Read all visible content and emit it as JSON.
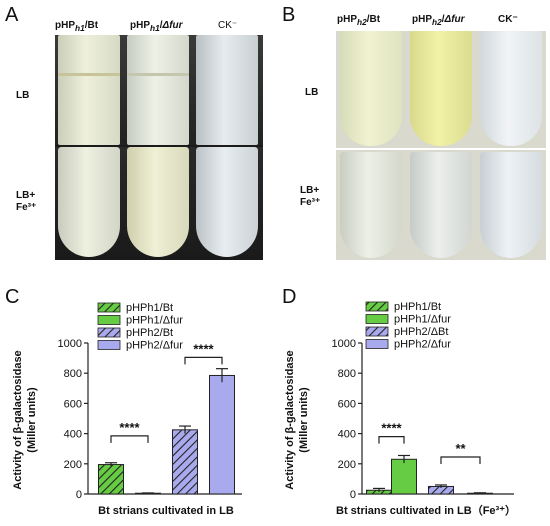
{
  "panels": {
    "A": {
      "letter": "A",
      "columns": [
        "pHPh1/Bt",
        "pHPh1/Δfur",
        "CK⁻"
      ],
      "rows": [
        "LB",
        "LB+",
        "Fe³⁺"
      ]
    },
    "B": {
      "letter": "B",
      "columns": [
        "pHPh2/Bt",
        "pHPh2/Δfur",
        "CK⁻"
      ],
      "rows": [
        "LB",
        "LB+",
        "Fe³⁺"
      ]
    }
  },
  "colors": {
    "green": "#66cc44",
    "purple": "#a9a9ee",
    "dark": "#222222"
  },
  "chart_data": [
    {
      "type": "bar",
      "panel": "C",
      "categories": [
        "pHPh1/Bt",
        "pHPh1/Δfur",
        "pHPh2/Bt",
        "pHPh2/Δfur"
      ],
      "values": [
        195,
        5,
        425,
        785
      ],
      "errors": [
        12,
        2,
        25,
        45
      ],
      "hatched": [
        true,
        false,
        true,
        false
      ],
      "colors": [
        "#66cc44",
        "#66cc44",
        "#a9a9ee",
        "#a9a9ee"
      ],
      "legend": [
        "pHPh1/Bt",
        "pHPh1/Δfur",
        "pHPh2/Bt",
        "pHPh2/Δfur"
      ],
      "ylabel_line1": "Activity of β-galactosidase",
      "ylabel_line2": "(Miller units)",
      "xlabel": "Bt strians cultivated in LB",
      "ylim": [
        0,
        1000
      ],
      "yticks": [
        "0",
        "200",
        "400",
        "600",
        "800",
        "1000"
      ],
      "significance": [
        {
          "pair": [
            0,
            1
          ],
          "y": 385,
          "label": "****"
        },
        {
          "pair": [
            2,
            3
          ],
          "y": 905,
          "label": "****"
        }
      ]
    },
    {
      "type": "bar",
      "panel": "D",
      "categories": [
        "pHPh1/Bt",
        "pHPh1/Δfur",
        "pHPh2/ΔBt",
        "pHPh2/Δfur"
      ],
      "values": [
        25,
        230,
        50,
        5
      ],
      "errors": [
        12,
        25,
        10,
        3
      ],
      "hatched": [
        true,
        false,
        true,
        false
      ],
      "colors": [
        "#66cc44",
        "#66cc44",
        "#a9a9ee",
        "#a9a9ee"
      ],
      "legend": [
        "pHPh1/Bt",
        "pHPh1/Δfur",
        "pHPh2/ΔBt",
        "pHPh2/Δfur"
      ],
      "ylabel_line1": "Activity of β-galactosidase",
      "ylabel_line2": "(Miller units)",
      "xlabel": "Bt strians cultivated in LB（Fe³⁺）",
      "ylim": [
        0,
        1000
      ],
      "yticks": [
        "0",
        "200",
        "400",
        "600",
        "800",
        "1000"
      ],
      "significance": [
        {
          "pair": [
            0,
            1
          ],
          "y": 380,
          "label": "****"
        },
        {
          "pair": [
            2,
            3
          ],
          "y": 245,
          "label": "**"
        }
      ]
    }
  ]
}
